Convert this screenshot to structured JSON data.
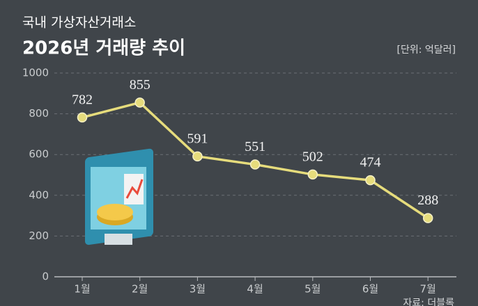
{
  "chart_data": {
    "type": "line",
    "supertitle": "국내 가상자산거래소",
    "title": "2026년 거래량 추이",
    "unit_label": "[단위: 억달러]",
    "source": "자료: 더블록",
    "categories": [
      "1월",
      "2월",
      "3월",
      "4월",
      "5월",
      "6월",
      "7월"
    ],
    "values": [
      782,
      855,
      591,
      551,
      502,
      474,
      288
    ],
    "color": "#e6dc7c",
    "ylim": [
      0,
      1000
    ],
    "yticks": [
      0,
      200,
      400,
      600,
      800,
      1000
    ],
    "grid": true
  }
}
